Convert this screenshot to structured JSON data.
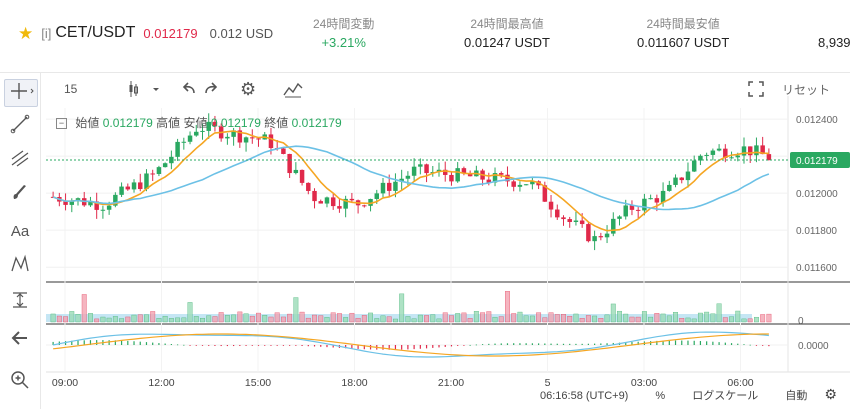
{
  "header": {
    "tag": "[i]",
    "symbol": "CET/USDT",
    "last_price": "0.012179",
    "last_price_usd": "0.012 USD",
    "stats": [
      {
        "label": "24時間変動",
        "value": "+3.21%"
      },
      {
        "label": "24時間最高値",
        "value": "0.01247 USDT"
      },
      {
        "label": "24時間最安値",
        "value": "0.011607 USDT"
      },
      {
        "label": "",
        "value": "8,939"
      }
    ]
  },
  "toolbar": {
    "interval": "15",
    "reset_label": "リセット"
  },
  "legend": {
    "open_label": "始値",
    "open": "0.012179",
    "high_label": "高値",
    "low_label": "安値",
    "low": "0.012179",
    "close_label": "終値",
    "close": "0.012179"
  },
  "chart_data": {
    "type": "candlestick",
    "price_axis_ticks": [
      "0.012400",
      "0.012200",
      "0.012000",
      "0.011800",
      "0.011600"
    ],
    "current_price_label": "0.012179",
    "volume_axis_label": "0",
    "macd_axis_label": "0.0000",
    "time_labels": [
      "09:00",
      "12:00",
      "15:00",
      "18:00",
      "21:00",
      "5",
      "03:00",
      "06:00"
    ],
    "colors": {
      "up": "#2aa861",
      "down": "#e0294a",
      "ma_fast": "#f5a623",
      "ma_slow": "#6cc1e6"
    }
  },
  "bottom": {
    "clock": "06:16:58 (UTC+9)",
    "percent": "%",
    "log_scale": "ログスケール",
    "auto": "自動"
  },
  "icons": [
    "crosshair-icon",
    "trendline-icon",
    "fib-icon",
    "brush-icon",
    "text-icon",
    "pattern-icon",
    "measure-icon",
    "back-arrow-icon",
    "zoom-icon",
    "candle-type-icon",
    "undo-icon",
    "redo-icon",
    "settings-icon",
    "indicator-icon",
    "fullscreen-icon",
    "gear-icon",
    "star-icon"
  ]
}
